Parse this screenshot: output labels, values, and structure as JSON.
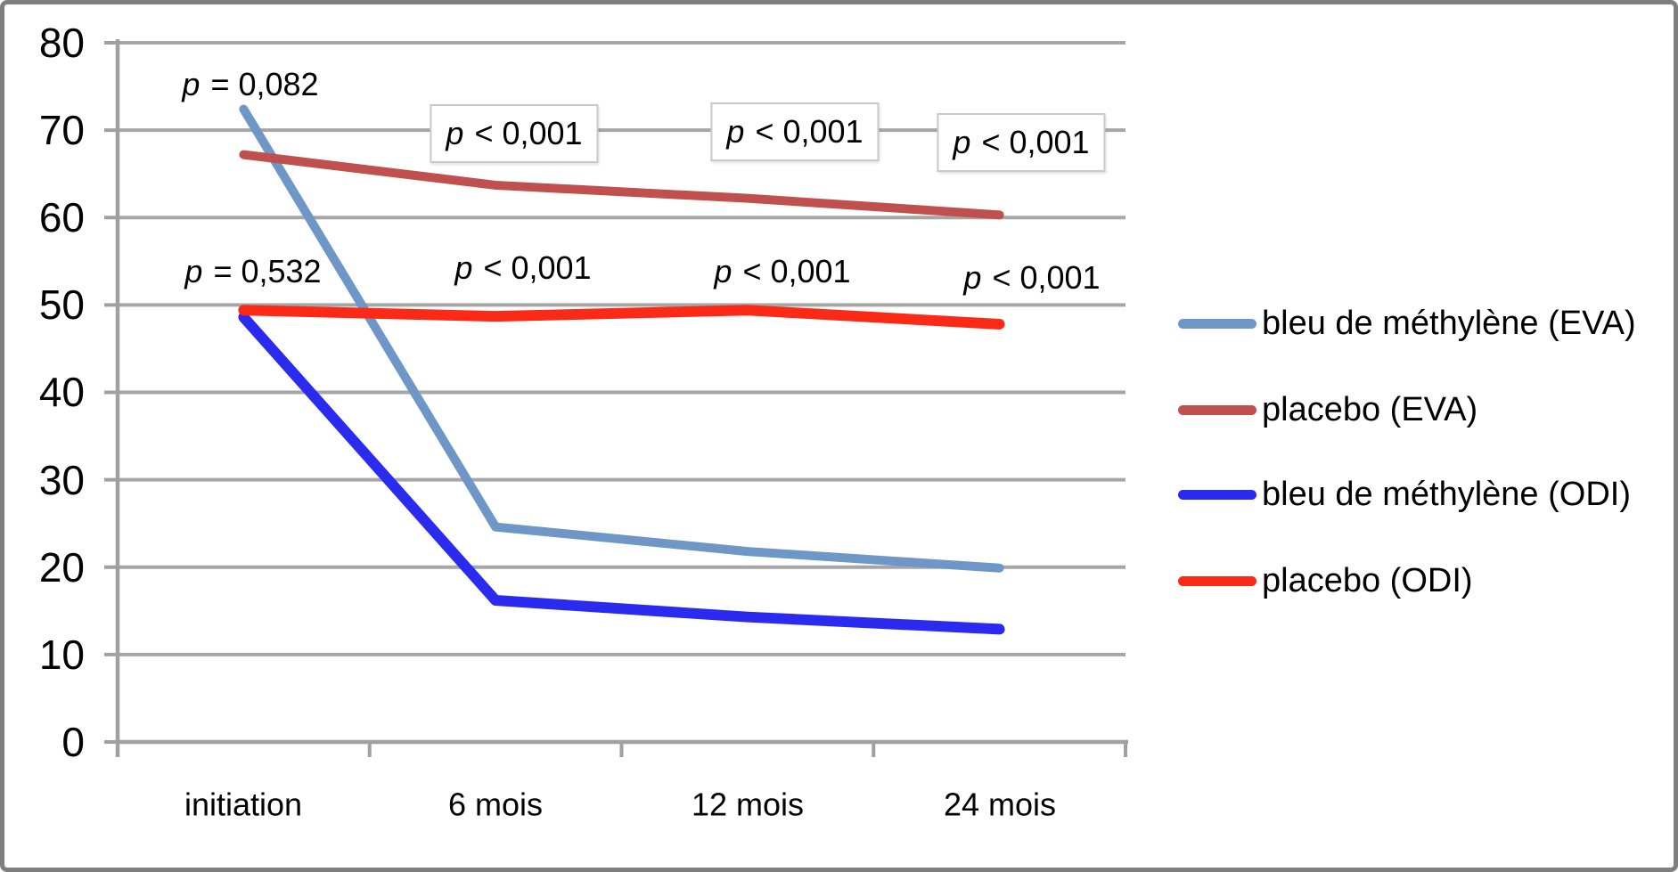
{
  "figure": {
    "background": "#ffffff",
    "frame_color": "#7f7f7f"
  },
  "chart_data": {
    "type": "line",
    "title": "",
    "xlabel": "",
    "ylabel": "",
    "categories": [
      "initiation",
      "6 mois",
      "12 mois",
      "24 mois"
    ],
    "series": [
      {
        "name": "bleu de méthylène (EVA)",
        "color": "#6E97C8",
        "values": [
          72.4,
          24.6,
          21.8,
          19.9
        ]
      },
      {
        "name": "placebo (EVA)",
        "color": "#C0504D",
        "values": [
          67.2,
          63.7,
          62.2,
          60.3
        ]
      },
      {
        "name": "bleu de méthylène (ODI)",
        "color": "#2A2BEE",
        "values": [
          48.6,
          16.2,
          14.3,
          12.9
        ]
      },
      {
        "name": "placebo (ODI)",
        "color": "#FB2A17",
        "values": [
          49.4,
          48.7,
          49.4,
          47.8
        ]
      }
    ],
    "ylim": [
      0,
      80
    ],
    "yticks": [
      0,
      10,
      20,
      30,
      40,
      50,
      60,
      70,
      80
    ],
    "grid": "horizontal",
    "gridline_color": "#A6A6A6",
    "axis_color": "#A0A0A0",
    "legend_position": "right",
    "annotation_box_border": "#C9C9C9",
    "annotations": [
      {
        "text": "p = 0,082",
        "boxed": false,
        "series_group": "EVA",
        "category": "initiation"
      },
      {
        "text": "p < 0,001",
        "boxed": true,
        "series_group": "EVA",
        "category": "6 mois"
      },
      {
        "text": "p < 0,001",
        "boxed": true,
        "series_group": "EVA",
        "category": "12 mois"
      },
      {
        "text": "p < 0,001",
        "boxed": true,
        "series_group": "EVA",
        "category": "24 mois"
      },
      {
        "text": "p = 0,532",
        "boxed": false,
        "series_group": "ODI",
        "category": "initiation"
      },
      {
        "text": "p < 0,001",
        "boxed": false,
        "series_group": "ODI",
        "category": "6 mois"
      },
      {
        "text": "p < 0,001",
        "boxed": false,
        "series_group": "ODI",
        "category": "12 mois"
      },
      {
        "text": "p < 0,001",
        "boxed": false,
        "series_group": "ODI",
        "category": "24 mois"
      }
    ]
  }
}
